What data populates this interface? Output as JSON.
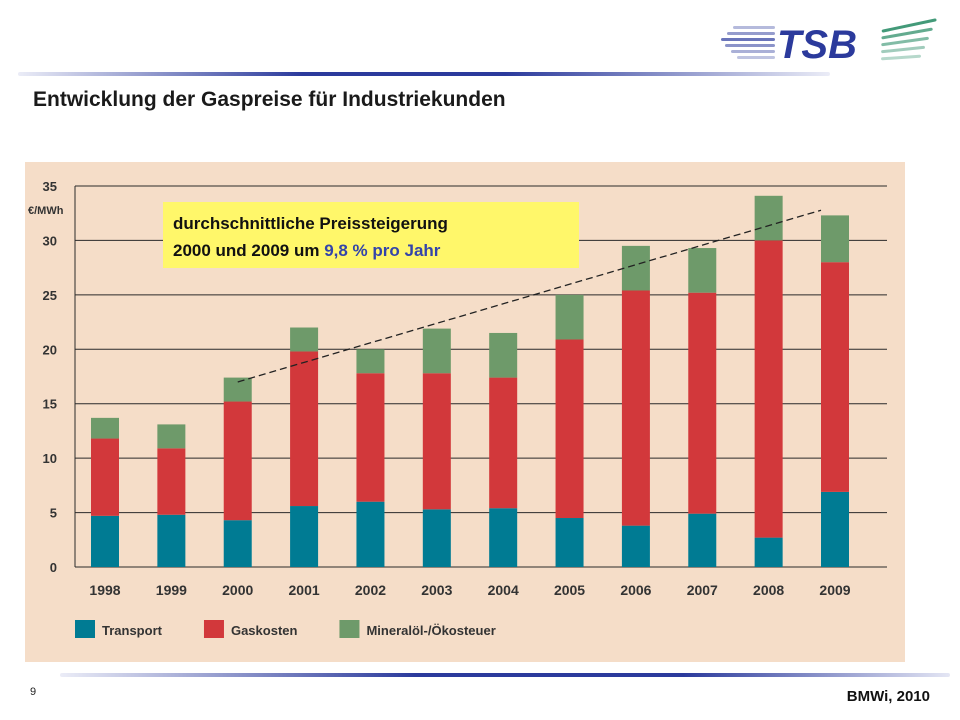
{
  "slide": {
    "title": "Entwicklung der Gaspreise für Industriekunden",
    "page_number": "9",
    "source": "BMWi, 2010"
  },
  "logo": {
    "text": "TSB",
    "color": "#2b3a9c",
    "accent_color": "#2f8f6a"
  },
  "annotation": {
    "line1": "durchschnittliche Preissteigerung",
    "line2_prefix": "2000 und 2009 um ",
    "line2_highlight": "9,8 % pro Jahr",
    "highlight_color": "#3344aa",
    "background": "#fff76a"
  },
  "chart_data": {
    "type": "bar",
    "stacked": true,
    "ylabel": "€/MWh",
    "ylim": [
      0,
      35
    ],
    "yticks": [
      0,
      5,
      10,
      15,
      20,
      25,
      30,
      35
    ],
    "grid": true,
    "legend_position": "bottom-left",
    "background": "#f5ddc8",
    "categories": [
      "1998",
      "1999",
      "2000",
      "2001",
      "2002",
      "2003",
      "2004",
      "2005",
      "2006",
      "2007",
      "2008",
      "2009"
    ],
    "series": [
      {
        "name": "Transport",
        "color": "#007b93",
        "values": [
          4.7,
          4.8,
          4.3,
          5.6,
          6.0,
          5.3,
          5.4,
          4.5,
          3.8,
          4.9,
          2.7,
          6.9
        ]
      },
      {
        "name": "Gaskosten",
        "color": "#d2383b",
        "values": [
          7.1,
          6.1,
          10.9,
          14.2,
          11.8,
          12.5,
          12.0,
          16.4,
          21.6,
          20.3,
          27.3,
          21.1
        ]
      },
      {
        "name": "Mineralöl-/Ökosteuer",
        "color": "#6e9a6a",
        "values": [
          1.9,
          2.2,
          2.2,
          2.2,
          2.2,
          4.1,
          4.1,
          4.1,
          4.1,
          4.1,
          4.1,
          4.3
        ]
      }
    ],
    "trend_line": {
      "from": [
        "2000",
        17.0
      ],
      "to": [
        "2009",
        32.5
      ],
      "style": "dashed"
    }
  }
}
